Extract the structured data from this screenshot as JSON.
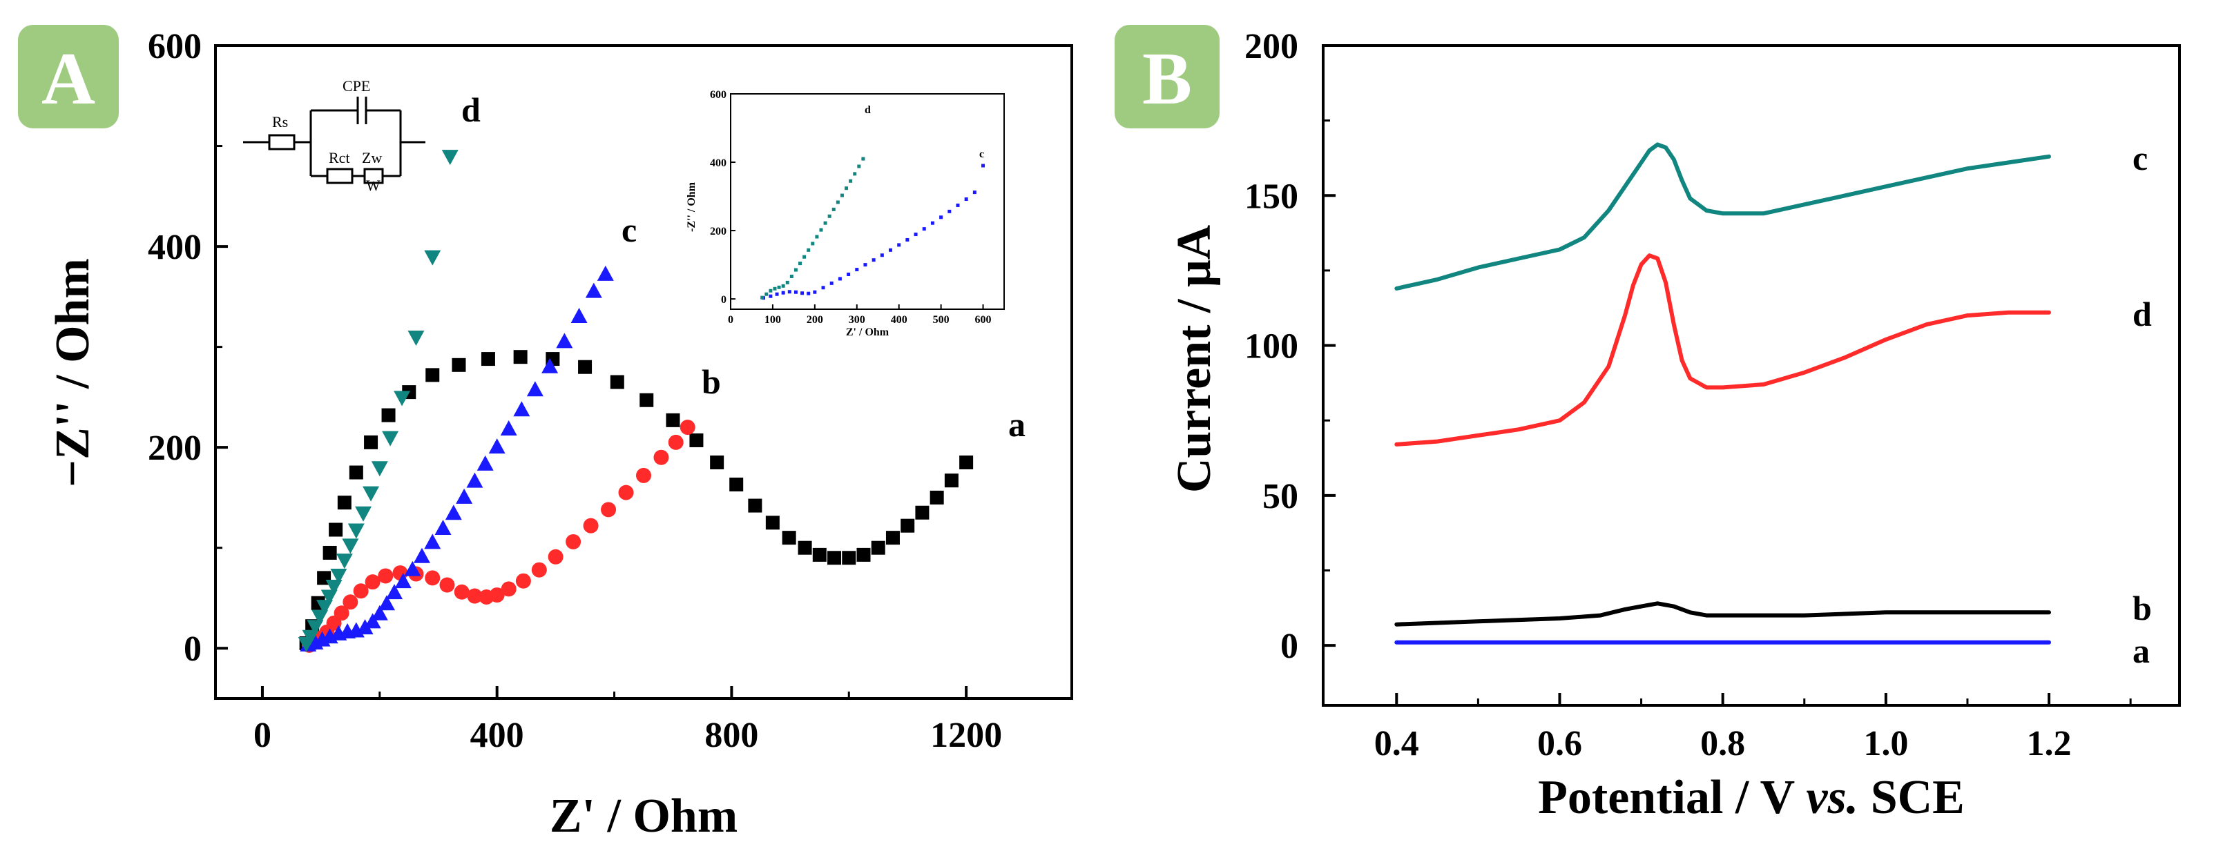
{
  "colors": {
    "a_impedance": "#000000",
    "b_impedance": "#ff2a2a",
    "c_impedance": "#1a1aff",
    "d_impedance": "#11857f",
    "a_dpv": "#1a1aff",
    "b_dpv": "#000000",
    "c_dpv": "#11857f",
    "d_dpv": "#ff2a2a",
    "badge": "#9ecb80"
  },
  "chart_data": [
    {
      "type": "scatter",
      "panel": "A",
      "xlabel": "Z' / Ohm",
      "ylabel": "−Z'' / Ohm",
      "xlim": [
        -80,
        1380
      ],
      "ylim": [
        -50,
        600
      ],
      "xticks": [
        0,
        400,
        800,
        1200
      ],
      "yticks": [
        0,
        200,
        400,
        600
      ],
      "curve_labels": {
        "a": "a",
        "b": "b",
        "c": "c",
        "d": "d"
      },
      "series": [
        {
          "name": "a",
          "marker": "square",
          "x": [
            75,
            85,
            95,
            105,
            115,
            125,
            140,
            160,
            185,
            215,
            250,
            290,
            335,
            385,
            440,
            495,
            550,
            605,
            655,
            700,
            740,
            775,
            808,
            840,
            870,
            898,
            925,
            950,
            975,
            1000,
            1025,
            1050,
            1075,
            1100,
            1125,
            1150,
            1175,
            1200
          ],
          "y": [
            5,
            22,
            45,
            70,
            95,
            118,
            145,
            175,
            205,
            232,
            255,
            272,
            282,
            288,
            290,
            288,
            280,
            265,
            247,
            227,
            207,
            185,
            163,
            142,
            125,
            110,
            100,
            93,
            90,
            90,
            93,
            100,
            110,
            122,
            135,
            150,
            167,
            185
          ]
        },
        {
          "name": "b",
          "marker": "circle",
          "x": [
            80,
            90,
            100,
            110,
            122,
            135,
            150,
            168,
            188,
            210,
            235,
            262,
            290,
            315,
            340,
            362,
            382,
            400,
            420,
            445,
            472,
            500,
            530,
            560,
            590,
            620,
            650,
            680,
            705,
            725
          ],
          "y": [
            3,
            6,
            10,
            16,
            25,
            35,
            46,
            57,
            66,
            72,
            75,
            74,
            70,
            63,
            56,
            52,
            51,
            53,
            59,
            67,
            78,
            91,
            106,
            122,
            138,
            155,
            172,
            190,
            205,
            220
          ]
        },
        {
          "name": "c",
          "marker": "triangle-up",
          "x": [
            78,
            90,
            102,
            115,
            130,
            145,
            160,
            175,
            188,
            200,
            212,
            225,
            240,
            256,
            272,
            290,
            308,
            326,
            344,
            362,
            380,
            400,
            420,
            442,
            465,
            490,
            515,
            540,
            565,
            585
          ],
          "y": [
            3,
            5,
            8,
            11,
            14,
            16,
            17,
            20,
            26,
            34,
            44,
            55,
            66,
            78,
            91,
            105,
            119,
            134,
            150,
            166,
            183,
            200,
            218,
            237,
            257,
            280,
            305,
            330,
            355,
            372
          ]
        },
        {
          "name": "d",
          "marker": "triangle-down",
          "x": [
            75,
            82,
            90,
            98,
            106,
            114,
            122,
            130,
            140,
            150,
            160,
            172,
            185,
            200,
            218,
            238,
            262,
            290,
            320
          ],
          "y": [
            5,
            12,
            22,
            32,
            42,
            52,
            62,
            73,
            88,
            103,
            118,
            135,
            155,
            180,
            210,
            250,
            310,
            390,
            490
          ]
        }
      ],
      "inset": {
        "type": "scatter",
        "xlabel": "Z' / Ohm",
        "ylabel": "-Z'' / Ohm",
        "xlim": [
          0,
          650
        ],
        "ylim": [
          -30,
          600
        ],
        "xticks": [
          0,
          100,
          200,
          300,
          400,
          500,
          600
        ],
        "yticks": [
          0,
          200,
          400,
          600
        ],
        "series": [
          {
            "name": "c",
            "x": [
              78,
              95,
              110,
              125,
              140,
              155,
              170,
              185,
              200,
              220,
              240,
              260,
              280,
              300,
              320,
              340,
              360,
              380,
              400,
              420,
              440,
              460,
              480,
              500,
              520,
              540,
              560,
              580,
              600
            ],
            "y": [
              3,
              8,
              14,
              18,
              21,
              20,
              17,
              16,
              20,
              33,
              46,
              59,
              72,
              86,
              100,
              114,
              128,
              143,
              158,
              173,
              189,
              205,
              222,
              239,
              256,
              274,
              292,
              312,
              390
            ]
          },
          {
            "name": "d",
            "x": [
              75,
              85,
              95,
              105,
              115,
              125,
              135,
              145,
              155,
              165,
              175,
              185,
              195,
              205,
              215,
              225,
              235,
              245,
              255,
              265,
              275,
              285,
              295,
              305,
              315
            ],
            "y": [
              4,
              14,
              24,
              30,
              34,
              38,
              48,
              66,
              85,
              104,
              123,
              143,
              162,
              182,
              202,
              222,
              242,
              262,
              283,
              303,
              324,
              345,
              366,
              388,
              410
            ]
          }
        ],
        "curve_labels": {
          "c": "c",
          "d": "d"
        }
      },
      "circuit": {
        "Rs": "Rs",
        "Rct": "Rct",
        "Zw": "Zw",
        "W": "W",
        "CPE": "CPE"
      }
    },
    {
      "type": "line",
      "panel": "B",
      "xlabel": "Potential / V vs. SCE",
      "ylabel": "Current / μA",
      "xlim": [
        0.31,
        1.36
      ],
      "ylim": [
        -20,
        200
      ],
      "xticks": [
        "0.4",
        "0.6",
        "0.8",
        "1.0",
        "1.2"
      ],
      "yticks": [
        0,
        50,
        100,
        150,
        200
      ],
      "curve_labels": {
        "a": "a",
        "b": "b",
        "c": "c",
        "d": "d"
      },
      "series": [
        {
          "name": "c",
          "x": [
            0.4,
            0.45,
            0.5,
            0.55,
            0.6,
            0.63,
            0.66,
            0.68,
            0.7,
            0.71,
            0.72,
            0.73,
            0.74,
            0.75,
            0.76,
            0.78,
            0.8,
            0.85,
            0.9,
            0.95,
            1.0,
            1.05,
            1.1,
            1.15,
            1.2
          ],
          "y": [
            119,
            122,
            126,
            129,
            132,
            136,
            145,
            153,
            161,
            165,
            167,
            166,
            162,
            155,
            149,
            145,
            144,
            144,
            147,
            150,
            153,
            156,
            159,
            161,
            163
          ]
        },
        {
          "name": "d",
          "x": [
            0.4,
            0.45,
            0.5,
            0.55,
            0.6,
            0.63,
            0.66,
            0.68,
            0.69,
            0.7,
            0.71,
            0.72,
            0.73,
            0.74,
            0.75,
            0.76,
            0.78,
            0.8,
            0.85,
            0.9,
            0.95,
            1.0,
            1.05,
            1.1,
            1.15,
            1.2
          ],
          "y": [
            67,
            68,
            70,
            72,
            75,
            81,
            93,
            110,
            120,
            127,
            130,
            129,
            121,
            107,
            95,
            89,
            86,
            86,
            87,
            91,
            96,
            102,
            107,
            110,
            111,
            111
          ]
        },
        {
          "name": "b",
          "x": [
            0.4,
            0.5,
            0.6,
            0.65,
            0.68,
            0.7,
            0.72,
            0.74,
            0.76,
            0.78,
            0.8,
            0.9,
            1.0,
            1.1,
            1.2
          ],
          "y": [
            7,
            8,
            9,
            10,
            12,
            13,
            14,
            13,
            11,
            10,
            10,
            10,
            11,
            11,
            11
          ]
        },
        {
          "name": "a",
          "x": [
            0.4,
            0.6,
            0.8,
            1.0,
            1.2
          ],
          "y": [
            1,
            1,
            1,
            1,
            1
          ]
        }
      ]
    }
  ],
  "badges": {
    "A": "A",
    "B": "B"
  }
}
